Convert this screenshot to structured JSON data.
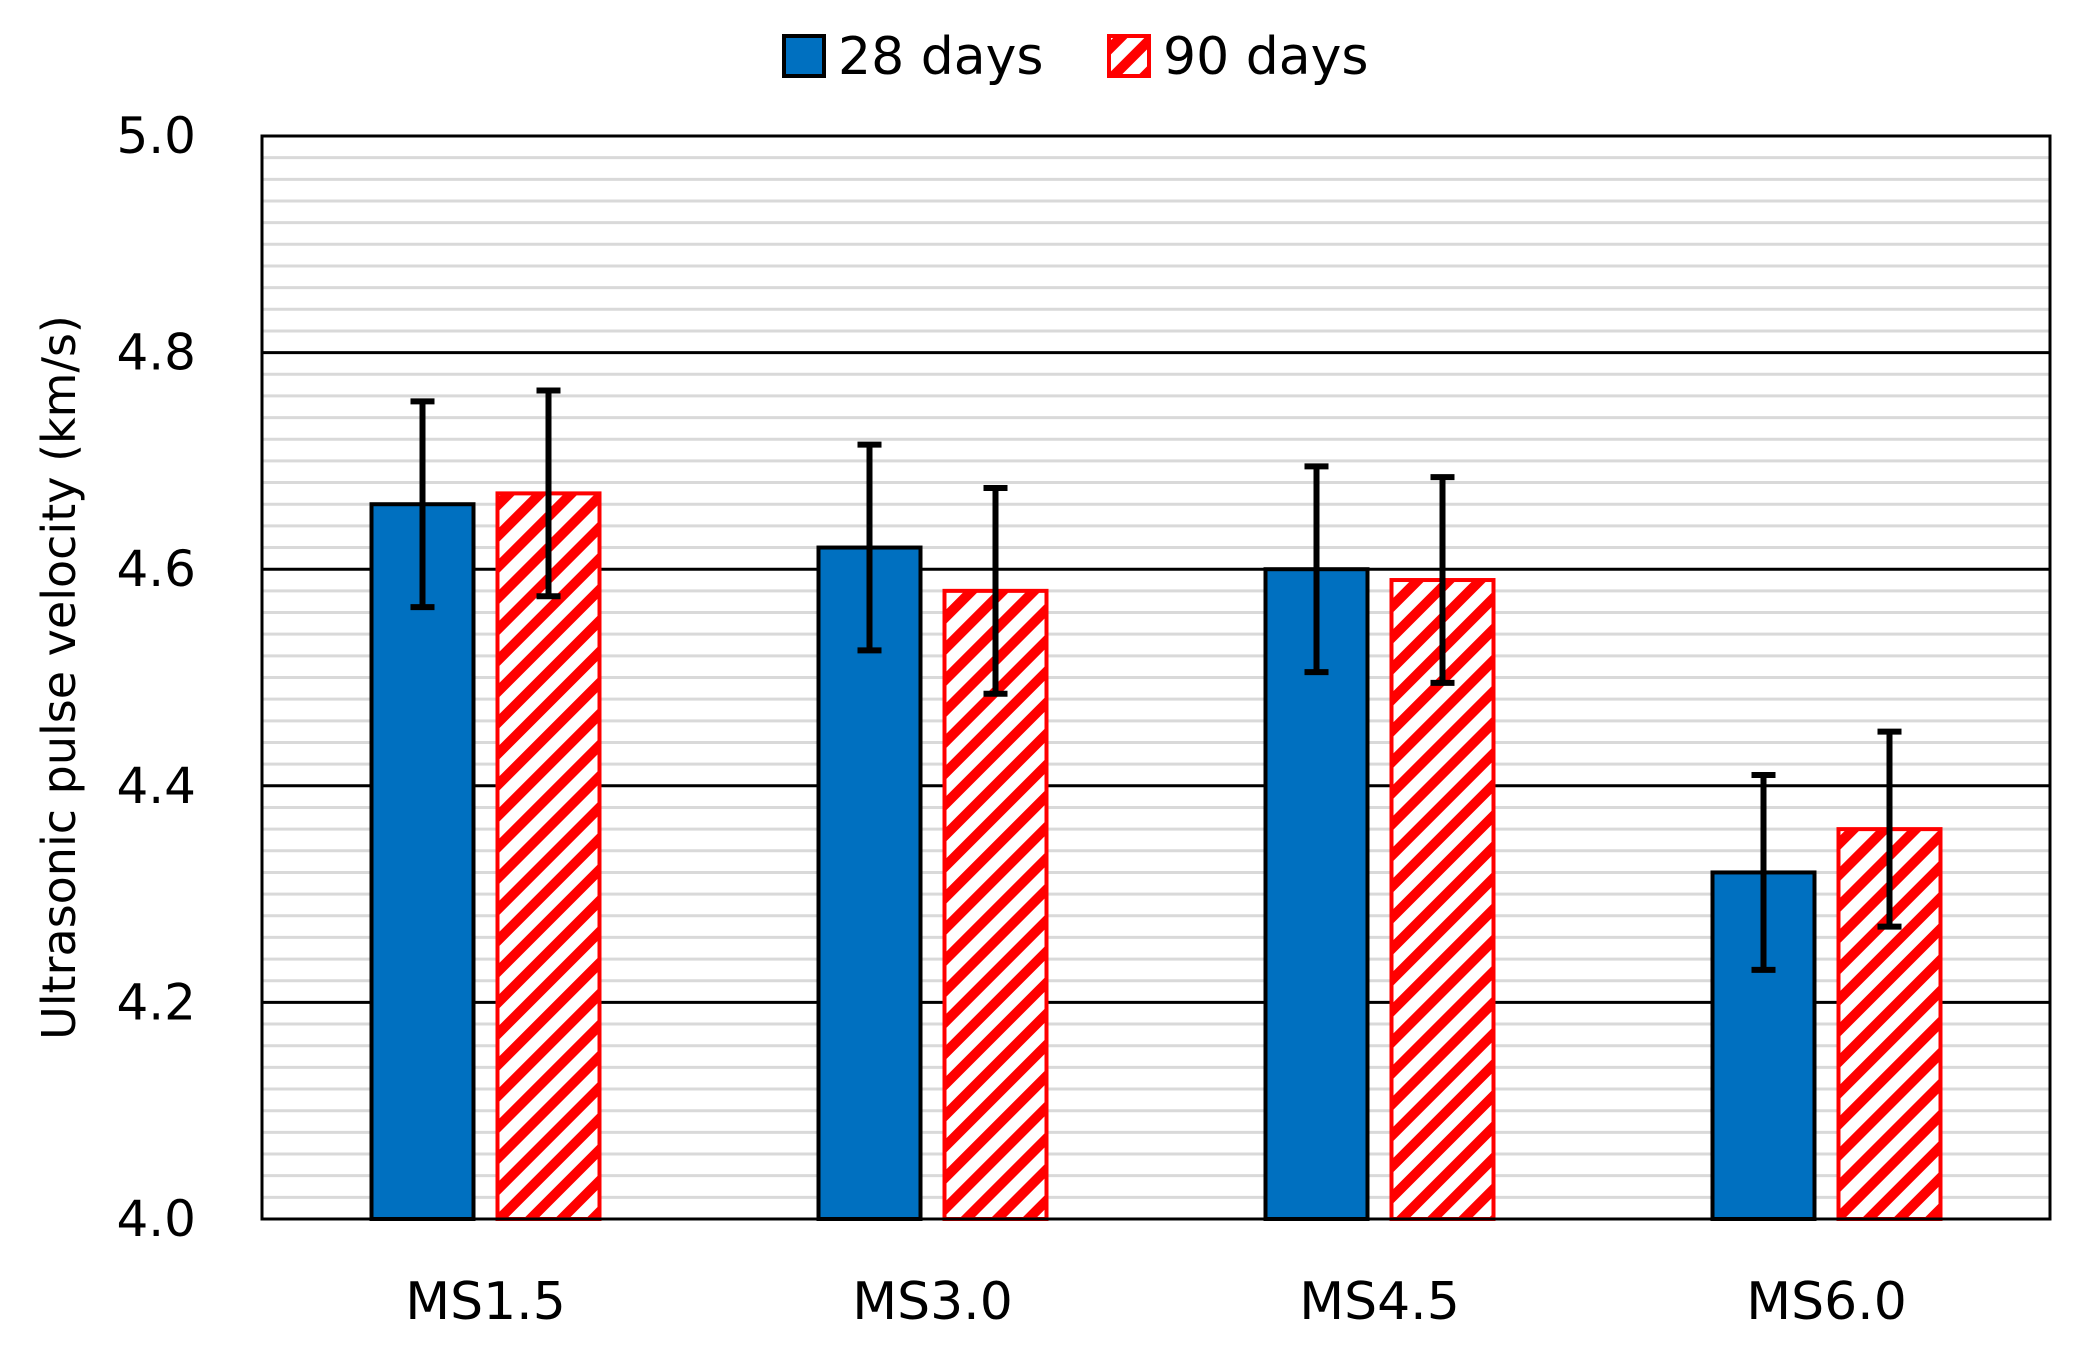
{
  "chart_data": {
    "type": "bar",
    "title": "",
    "xlabel": "",
    "ylabel": "Ultrasonic pulse velocity (km/s)",
    "categories": [
      "MS1.5",
      "MS3.0",
      "MS4.5",
      "MS6.0"
    ],
    "ylim": [
      4.0,
      5.0
    ],
    "yticks": [
      "4.0",
      "4.2",
      "4.4",
      "4.6",
      "4.8",
      "5.0"
    ],
    "ytick_values": [
      4.0,
      4.2,
      4.4,
      4.6,
      4.8,
      5.0
    ],
    "major_grid_step": 0.2,
    "minor_grid_step": 0.02,
    "grid": true,
    "legend_position": "top-center",
    "series": [
      {
        "name": "28 days",
        "style": "solid",
        "color": "#0070C0",
        "edge_color": "#000000",
        "values": [
          4.66,
          4.62,
          4.6,
          4.32
        ],
        "error": [
          0.095,
          0.095,
          0.095,
          0.09
        ]
      },
      {
        "name": "90 days",
        "style": "hatched",
        "color": "#FF0000",
        "edge_color": "#FF0000",
        "values": [
          4.67,
          4.58,
          4.59,
          4.36
        ],
        "error": [
          0.095,
          0.095,
          0.095,
          0.09
        ]
      }
    ]
  }
}
